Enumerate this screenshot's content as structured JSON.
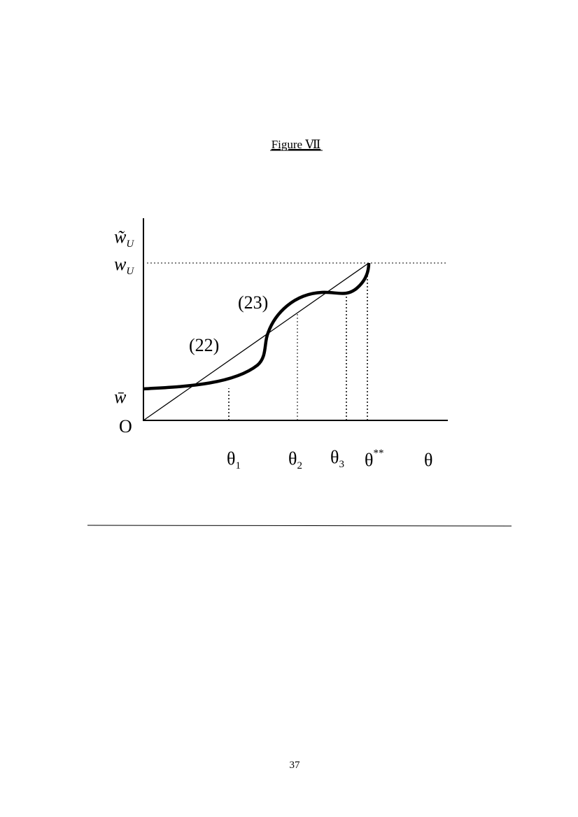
{
  "title": "Figure Ⅶ",
  "axis_labels": {
    "y_top": {
      "base": "w̃",
      "sub": "U"
    },
    "y_upper": {
      "base": "w",
      "sub": "U"
    },
    "y_lower": "w̄",
    "origin": "O",
    "x": "θ"
  },
  "curve_labels": [
    "(22)",
    "(23)"
  ],
  "x_marks": [
    {
      "base": "θ",
      "sub": "1"
    },
    {
      "base": "θ",
      "sub": "2"
    },
    {
      "base": "θ",
      "sub": "3"
    },
    {
      "base": "θ",
      "sup": "**"
    }
  ],
  "page_number": "37"
}
